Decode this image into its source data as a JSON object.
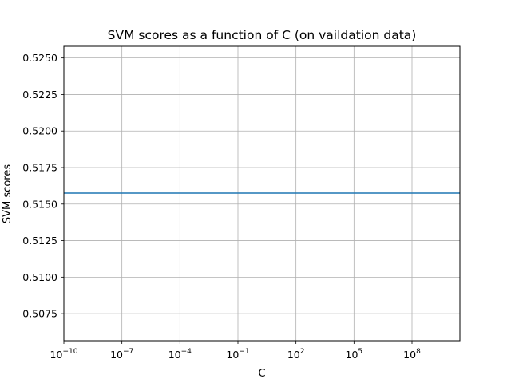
{
  "chart_data": {
    "type": "line",
    "title": "SVM scores as a function of C (on vaildation data)",
    "xlabel": "C",
    "ylabel": "SVM scores",
    "xscale": "log",
    "xlim": [
      1e-10,
      30000000000.0
    ],
    "ylim": [
      0.50565,
      0.5258
    ],
    "grid": true,
    "x_ticks": [
      {
        "base": "10",
        "exp": "−10",
        "value": 1e-10
      },
      {
        "base": "10",
        "exp": "−7",
        "value": 1e-07
      },
      {
        "base": "10",
        "exp": "−4",
        "value": 0.0001
      },
      {
        "base": "10",
        "exp": "−1",
        "value": 0.1
      },
      {
        "base": "10",
        "exp": "2",
        "value": 100.0
      },
      {
        "base": "10",
        "exp": "5",
        "value": 100000.0
      },
      {
        "base": "10",
        "exp": "8",
        "value": 100000000.0
      }
    ],
    "y_ticks": [
      {
        "label": "0.5075",
        "value": 0.5075
      },
      {
        "label": "0.5100",
        "value": 0.51
      },
      {
        "label": "0.5125",
        "value": 0.5125
      },
      {
        "label": "0.5150",
        "value": 0.515
      },
      {
        "label": "0.5175",
        "value": 0.5175
      },
      {
        "label": "0.5200",
        "value": 0.52
      },
      {
        "label": "0.5225",
        "value": 0.5225
      },
      {
        "label": "0.5250",
        "value": 0.525
      }
    ],
    "series": [
      {
        "color": "#1f77b4",
        "x": [
          1e-10,
          1e-09,
          1e-08,
          1e-07,
          1e-06,
          1e-05,
          0.0001,
          0.001,
          0.01,
          0.1,
          1,
          10,
          100,
          1000.0,
          10000.0,
          100000.0,
          1000000.0,
          10000000.0,
          100000000.0,
          1000000000.0,
          10000000000.0,
          30000000000.0
        ],
        "y": [
          0.51575,
          0.51575,
          0.51575,
          0.51575,
          0.51575,
          0.51575,
          0.51575,
          0.51575,
          0.51575,
          0.51575,
          0.51575,
          0.51575,
          0.51575,
          0.51575,
          0.51575,
          0.51575,
          0.51575,
          0.51575,
          0.51575,
          0.51575,
          0.51575,
          0.51575
        ]
      }
    ]
  }
}
